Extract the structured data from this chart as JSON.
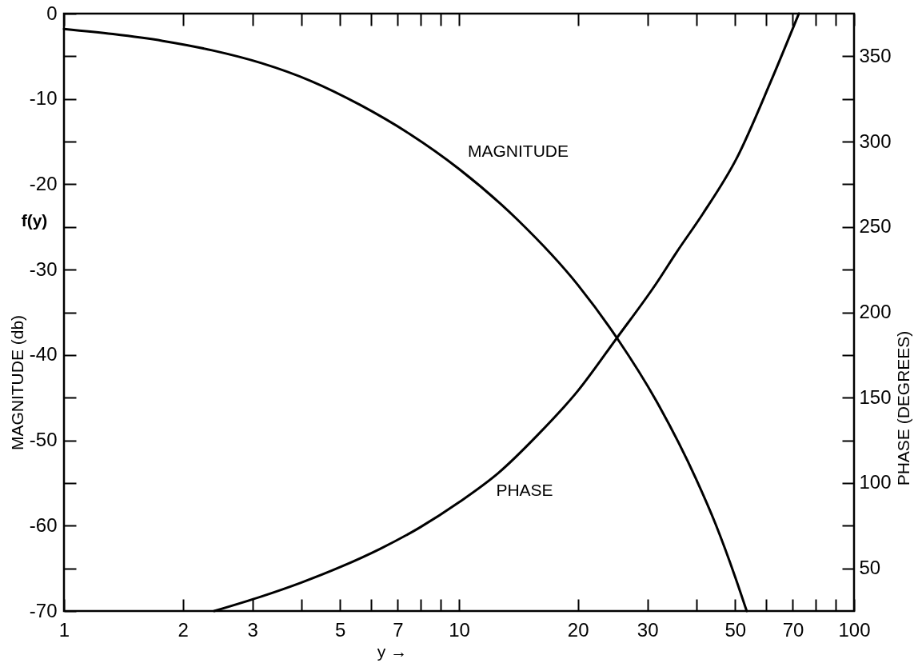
{
  "chart_data": {
    "type": "line",
    "xlabel": "y →",
    "ylabel": "MAGNITUDE (db)",
    "y2label": "PHASE (DEGREES)",
    "annotations": [
      "f(y)"
    ],
    "log": "x",
    "xlim": [
      1,
      100
    ],
    "xticks": [
      1,
      2,
      3,
      {
        "value": 4,
        "label": null
      },
      5,
      {
        "value": 6,
        "label": null
      },
      7,
      {
        "value": 8,
        "label": null
      },
      {
        "value": 9,
        "label": null
      },
      10,
      20,
      30,
      {
        "value": 40,
        "label": null
      },
      50,
      {
        "value": 60,
        "label": null
      },
      70,
      {
        "value": 80,
        "label": null
      },
      {
        "value": 90,
        "label": null
      },
      100
    ],
    "ylim": [
      -70,
      0
    ],
    "yticks": [
      -70,
      {
        "value": -65,
        "label": null
      },
      -60,
      {
        "value": -55,
        "label": null
      },
      -50,
      {
        "value": -45,
        "label": null
      },
      -40,
      {
        "value": -35,
        "label": null
      },
      -30,
      {
        "value": -25,
        "label": null
      },
      -20,
      {
        "value": -15,
        "label": null
      },
      -10,
      {
        "value": -5,
        "label": null
      },
      0
    ],
    "y2lim": [
      25,
      375
    ],
    "y2ticks": [
      50,
      {
        "value": 75,
        "label": null
      },
      100,
      {
        "value": 125,
        "label": null
      },
      150,
      {
        "value": 175,
        "label": null
      },
      200,
      {
        "value": 225,
        "label": null
      },
      250,
      {
        "value": 275,
        "label": null
      },
      300,
      {
        "value": 325,
        "label": null
      },
      350
    ],
    "line_style": "solid",
    "series": [
      {
        "name": "MAGNITUDE",
        "color": "#000000",
        "x": [
          1,
          1.33,
          1.78,
          2.37,
          3.16,
          4.22,
          5.62,
          7.5,
          10,
          14.1,
          20,
          25.1,
          31.6,
          39.8,
          44.7,
          50.1,
          53.5
        ],
        "values": [
          -1.8,
          -2.4,
          -3.2,
          -4.3,
          -5.8,
          -7.9,
          -10.7,
          -14.1,
          -18.2,
          -24.2,
          -31.8,
          -38,
          -45.4,
          -54.5,
          -59.9,
          -66.1,
          -70
        ]
      },
      {
        "name": "PHASE",
        "color": "#000000",
        "axis": "y2",
        "x": [
          2.4,
          3.16,
          3.98,
          5.01,
          6.31,
          7.94,
          10,
          12.6,
          15.8,
          20,
          25.1,
          31.6,
          35.5,
          41.5,
          50.4,
          61.5,
          72.5
        ],
        "values": [
          25,
          33.5,
          41.6,
          50.8,
          61.4,
          73.8,
          88.7,
          106,
          128,
          154,
          185,
          217,
          235,
          258,
          290,
          335,
          375
        ]
      }
    ]
  }
}
